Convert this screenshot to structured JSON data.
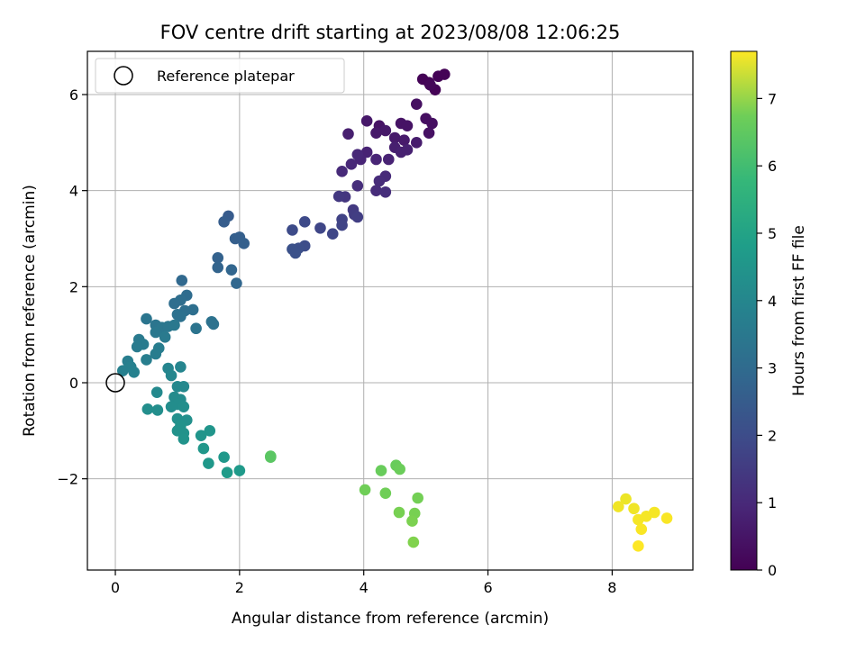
{
  "chart_data": {
    "type": "scatter",
    "title": "FOV centre drift starting at 2023/08/08 12:06:25",
    "xlabel": "Angular distance from reference (arcmin)",
    "ylabel": "Rotation from reference (arcmin)",
    "colorbar_label": "Hours from first FF file",
    "xlim": [
      -0.45,
      9.3
    ],
    "ylim": [
      -3.9,
      6.9
    ],
    "x_ticks": [
      "0",
      "2",
      "4",
      "6",
      "8"
    ],
    "y_ticks": [
      "−2",
      "0",
      "2",
      "4",
      "6"
    ],
    "colorbar_range": [
      0,
      7.7
    ],
    "colorbar_ticks": [
      "0",
      "1",
      "2",
      "3",
      "4",
      "5",
      "6",
      "7"
    ],
    "colormap": "viridis",
    "grid": true,
    "legend": {
      "placement": "top-left",
      "entries": [
        "Reference platepar"
      ]
    },
    "reference_point": {
      "x": 0,
      "y": 0
    },
    "points": [
      {
        "x": 4.95,
        "y": 6.32,
        "t": 0.05
      },
      {
        "x": 5.05,
        "y": 6.25,
        "t": 0.05
      },
      {
        "x": 5.15,
        "y": 6.1,
        "t": 0.05
      },
      {
        "x": 5.2,
        "y": 6.38,
        "t": 0.05
      },
      {
        "x": 5.3,
        "y": 6.42,
        "t": 0.05
      },
      {
        "x": 5.07,
        "y": 6.2,
        "t": 0.1
      },
      {
        "x": 4.85,
        "y": 5.8,
        "t": 0.3
      },
      {
        "x": 5.0,
        "y": 5.5,
        "t": 0.3
      },
      {
        "x": 5.1,
        "y": 5.4,
        "t": 0.3
      },
      {
        "x": 5.05,
        "y": 5.2,
        "t": 0.35
      },
      {
        "x": 4.6,
        "y": 5.4,
        "t": 0.4
      },
      {
        "x": 4.7,
        "y": 5.35,
        "t": 0.4
      },
      {
        "x": 4.25,
        "y": 5.35,
        "t": 0.4
      },
      {
        "x": 4.35,
        "y": 5.25,
        "t": 0.5
      },
      {
        "x": 4.2,
        "y": 5.2,
        "t": 0.5
      },
      {
        "x": 4.5,
        "y": 5.1,
        "t": 0.55
      },
      {
        "x": 4.65,
        "y": 5.05,
        "t": 0.55
      },
      {
        "x": 4.85,
        "y": 5.0,
        "t": 0.6
      },
      {
        "x": 4.05,
        "y": 5.45,
        "t": 0.5
      },
      {
        "x": 3.75,
        "y": 5.18,
        "t": 0.65
      },
      {
        "x": 4.5,
        "y": 4.9,
        "t": 0.65
      },
      {
        "x": 4.6,
        "y": 4.8,
        "t": 0.7
      },
      {
        "x": 4.7,
        "y": 4.85,
        "t": 0.7
      },
      {
        "x": 4.4,
        "y": 4.65,
        "t": 0.75
      },
      {
        "x": 4.05,
        "y": 4.8,
        "t": 0.75
      },
      {
        "x": 4.2,
        "y": 4.65,
        "t": 0.8
      },
      {
        "x": 3.95,
        "y": 4.65,
        "t": 0.8
      },
      {
        "x": 3.8,
        "y": 4.55,
        "t": 0.85
      },
      {
        "x": 3.9,
        "y": 4.75,
        "t": 0.85
      },
      {
        "x": 3.65,
        "y": 4.4,
        "t": 0.9
      },
      {
        "x": 4.35,
        "y": 4.3,
        "t": 0.9
      },
      {
        "x": 4.25,
        "y": 4.2,
        "t": 0.95
      },
      {
        "x": 3.9,
        "y": 4.1,
        "t": 1.0
      },
      {
        "x": 4.2,
        "y": 4.0,
        "t": 0.95
      },
      {
        "x": 4.35,
        "y": 3.97,
        "t": 1.0
      },
      {
        "x": 3.7,
        "y": 3.87,
        "t": 1.2
      },
      {
        "x": 3.6,
        "y": 3.88,
        "t": 1.25
      },
      {
        "x": 3.83,
        "y": 3.6,
        "t": 1.3
      },
      {
        "x": 3.85,
        "y": 3.5,
        "t": 1.35
      },
      {
        "x": 3.9,
        "y": 3.45,
        "t": 1.4
      },
      {
        "x": 3.65,
        "y": 3.4,
        "t": 1.5
      },
      {
        "x": 3.65,
        "y": 3.28,
        "t": 1.55
      },
      {
        "x": 3.5,
        "y": 3.1,
        "t": 1.6
      },
      {
        "x": 3.3,
        "y": 3.22,
        "t": 1.6
      },
      {
        "x": 3.05,
        "y": 3.35,
        "t": 1.7
      },
      {
        "x": 2.85,
        "y": 3.18,
        "t": 1.75
      },
      {
        "x": 3.05,
        "y": 2.85,
        "t": 1.8
      },
      {
        "x": 2.95,
        "y": 2.8,
        "t": 1.85
      },
      {
        "x": 2.85,
        "y": 2.78,
        "t": 1.9
      },
      {
        "x": 2.9,
        "y": 2.7,
        "t": 1.9
      },
      {
        "x": 1.82,
        "y": 3.47,
        "t": 2.2
      },
      {
        "x": 1.75,
        "y": 3.35,
        "t": 2.25
      },
      {
        "x": 1.93,
        "y": 3.0,
        "t": 2.3
      },
      {
        "x": 2.0,
        "y": 3.03,
        "t": 2.3
      },
      {
        "x": 2.07,
        "y": 2.9,
        "t": 2.35
      },
      {
        "x": 1.65,
        "y": 2.6,
        "t": 2.4
      },
      {
        "x": 1.65,
        "y": 2.4,
        "t": 2.45
      },
      {
        "x": 1.87,
        "y": 2.35,
        "t": 2.5
      },
      {
        "x": 1.95,
        "y": 2.07,
        "t": 2.55
      },
      {
        "x": 1.07,
        "y": 2.13,
        "t": 2.6
      },
      {
        "x": 1.15,
        "y": 1.82,
        "t": 2.7
      },
      {
        "x": 1.05,
        "y": 1.72,
        "t": 2.75
      },
      {
        "x": 0.95,
        "y": 1.65,
        "t": 2.75
      },
      {
        "x": 1.25,
        "y": 1.52,
        "t": 2.8
      },
      {
        "x": 1.12,
        "y": 1.5,
        "t": 2.8
      },
      {
        "x": 1.0,
        "y": 1.42,
        "t": 2.85
      },
      {
        "x": 1.05,
        "y": 1.38,
        "t": 2.85
      },
      {
        "x": 1.55,
        "y": 1.27,
        "t": 2.9
      },
      {
        "x": 1.58,
        "y": 1.22,
        "t": 2.9
      },
      {
        "x": 1.3,
        "y": 1.13,
        "t": 2.95
      },
      {
        "x": 0.5,
        "y": 1.33,
        "t": 3.0
      },
      {
        "x": 0.65,
        "y": 1.2,
        "t": 3.0
      },
      {
        "x": 0.75,
        "y": 1.15,
        "t": 3.05
      },
      {
        "x": 0.85,
        "y": 1.17,
        "t": 3.05
      },
      {
        "x": 0.95,
        "y": 1.2,
        "t": 3.1
      },
      {
        "x": 0.65,
        "y": 1.05,
        "t": 3.1
      },
      {
        "x": 0.8,
        "y": 0.95,
        "t": 3.15
      },
      {
        "x": 0.38,
        "y": 0.9,
        "t": 3.15
      },
      {
        "x": 0.45,
        "y": 0.8,
        "t": 3.2
      },
      {
        "x": 0.35,
        "y": 0.75,
        "t": 3.2
      },
      {
        "x": 0.7,
        "y": 0.72,
        "t": 3.25
      },
      {
        "x": 0.65,
        "y": 0.6,
        "t": 3.25
      },
      {
        "x": 0.5,
        "y": 0.48,
        "t": 3.3
      },
      {
        "x": 0.2,
        "y": 0.45,
        "t": 3.3
      },
      {
        "x": 0.25,
        "y": 0.33,
        "t": 3.35
      },
      {
        "x": 0.12,
        "y": 0.25,
        "t": 3.35
      },
      {
        "x": 0.3,
        "y": 0.22,
        "t": 3.4
      },
      {
        "x": 0.85,
        "y": 0.3,
        "t": 3.5
      },
      {
        "x": 1.05,
        "y": 0.33,
        "t": 3.5
      },
      {
        "x": 0.9,
        "y": 0.15,
        "t": 3.55
      },
      {
        "x": 1.0,
        "y": -0.08,
        "t": 3.6
      },
      {
        "x": 1.1,
        "y": -0.08,
        "t": 3.6
      },
      {
        "x": 0.67,
        "y": -0.2,
        "t": 3.65
      },
      {
        "x": 0.95,
        "y": -0.3,
        "t": 3.7
      },
      {
        "x": 1.05,
        "y": -0.35,
        "t": 3.7
      },
      {
        "x": 1.0,
        "y": -0.45,
        "t": 3.75
      },
      {
        "x": 0.9,
        "y": -0.5,
        "t": 3.75
      },
      {
        "x": 1.1,
        "y": -0.5,
        "t": 3.8
      },
      {
        "x": 0.52,
        "y": -0.55,
        "t": 3.8
      },
      {
        "x": 0.68,
        "y": -0.57,
        "t": 3.8
      },
      {
        "x": 1.0,
        "y": -0.75,
        "t": 3.85
      },
      {
        "x": 1.15,
        "y": -0.78,
        "t": 3.85
      },
      {
        "x": 1.05,
        "y": -0.9,
        "t": 3.9
      },
      {
        "x": 1.1,
        "y": -1.05,
        "t": 3.9
      },
      {
        "x": 1.0,
        "y": -1.0,
        "t": 3.9
      },
      {
        "x": 1.1,
        "y": -1.17,
        "t": 3.95
      },
      {
        "x": 1.52,
        "y": -1.0,
        "t": 4.0
      },
      {
        "x": 1.38,
        "y": -1.1,
        "t": 4.0
      },
      {
        "x": 1.42,
        "y": -1.37,
        "t": 4.05
      },
      {
        "x": 1.5,
        "y": -1.68,
        "t": 4.1
      },
      {
        "x": 1.75,
        "y": -1.55,
        "t": 4.1
      },
      {
        "x": 2.0,
        "y": -1.83,
        "t": 4.15
      },
      {
        "x": 1.8,
        "y": -1.87,
        "t": 4.2
      },
      {
        "x": 2.5,
        "y": -1.55,
        "t": 5.7
      },
      {
        "x": 2.5,
        "y": -1.53,
        "t": 5.7
      },
      {
        "x": 4.28,
        "y": -1.83,
        "t": 5.9
      },
      {
        "x": 4.52,
        "y": -1.72,
        "t": 5.9
      },
      {
        "x": 4.58,
        "y": -1.8,
        "t": 5.95
      },
      {
        "x": 4.02,
        "y": -2.23,
        "t": 6.0
      },
      {
        "x": 4.35,
        "y": -2.3,
        "t": 6.0
      },
      {
        "x": 4.87,
        "y": -2.4,
        "t": 6.05
      },
      {
        "x": 4.57,
        "y": -2.7,
        "t": 6.1
      },
      {
        "x": 4.82,
        "y": -2.72,
        "t": 6.1
      },
      {
        "x": 4.78,
        "y": -2.88,
        "t": 6.15
      },
      {
        "x": 4.8,
        "y": -3.32,
        "t": 6.2
      },
      {
        "x": 8.22,
        "y": -2.42,
        "t": 7.5
      },
      {
        "x": 8.1,
        "y": -2.58,
        "t": 7.55
      },
      {
        "x": 8.35,
        "y": -2.62,
        "t": 7.55
      },
      {
        "x": 8.68,
        "y": -2.7,
        "t": 7.6
      },
      {
        "x": 8.55,
        "y": -2.78,
        "t": 7.6
      },
      {
        "x": 8.42,
        "y": -2.85,
        "t": 7.6
      },
      {
        "x": 8.88,
        "y": -2.82,
        "t": 7.65
      },
      {
        "x": 8.47,
        "y": -3.05,
        "t": 7.65
      },
      {
        "x": 8.42,
        "y": -3.4,
        "t": 7.7
      }
    ]
  }
}
